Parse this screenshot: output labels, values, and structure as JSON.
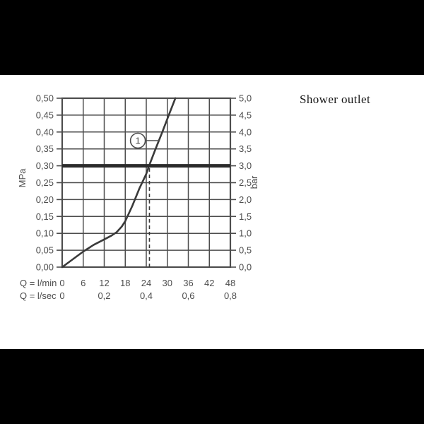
{
  "page": {
    "background": "#000000",
    "panel_background": "#ffffff"
  },
  "title": "Shower outlet",
  "chart_data": {
    "type": "line",
    "title": "Shower outlet",
    "x_axis": {
      "label_primary": "Q = l/min",
      "ticks_primary": [
        "0",
        "6",
        "12",
        "18",
        "24",
        "30",
        "36",
        "42",
        "48"
      ],
      "label_secondary": "Q = l/sec",
      "ticks_secondary": [
        {
          "value": 0,
          "label": "0"
        },
        {
          "value": 12,
          "label": "0,2"
        },
        {
          "value": 24,
          "label": "0,4"
        },
        {
          "value": 36,
          "label": "0,6"
        },
        {
          "value": 48,
          "label": "0,8"
        }
      ],
      "range": [
        0,
        48
      ],
      "grid_step": 6
    },
    "y_axis_left": {
      "label": "MPa",
      "ticks": [
        "0,50",
        "0,45",
        "0,40",
        "0,35",
        "0,30",
        "0,25",
        "0,20",
        "0,15",
        "0,10",
        "0,05",
        "0,00"
      ],
      "range": [
        0,
        0.5
      ],
      "grid_step": 0.05
    },
    "y_axis_right": {
      "label": "bar",
      "ticks": [
        "5,0",
        "4,5",
        "4,0",
        "3,5",
        "3,0",
        "2,5",
        "2,0",
        "1,5",
        "1,0",
        "0,5",
        "0,0"
      ],
      "range": [
        0,
        5
      ]
    },
    "grid": "on",
    "series": [
      {
        "name": "flow-pressure-curve",
        "points": [
          [
            0,
            0.0
          ],
          [
            3,
            0.023
          ],
          [
            6,
            0.046
          ],
          [
            9,
            0.066
          ],
          [
            12,
            0.082
          ],
          [
            14,
            0.093
          ],
          [
            15.5,
            0.103
          ],
          [
            17,
            0.12
          ],
          [
            18,
            0.136
          ],
          [
            20,
            0.181
          ],
          [
            22,
            0.232
          ],
          [
            24,
            0.276
          ],
          [
            24.8,
            0.3
          ],
          [
            26.5,
            0.346
          ],
          [
            28.5,
            0.398
          ],
          [
            30.5,
            0.452
          ],
          [
            32.3,
            0.5
          ]
        ]
      }
    ],
    "reference_line": {
      "y": 0.3,
      "color": "#2b2b2b"
    },
    "dashed_line": {
      "x": 24.9,
      "y_top": 0.3
    },
    "annotation": {
      "label": "1",
      "x": 21.6,
      "y": 0.3745,
      "leader_to_x": 27.8
    },
    "colors": {
      "grid": "#4d4d4d",
      "curve": "#3a3a3a",
      "text": "#4d4d4d"
    }
  }
}
